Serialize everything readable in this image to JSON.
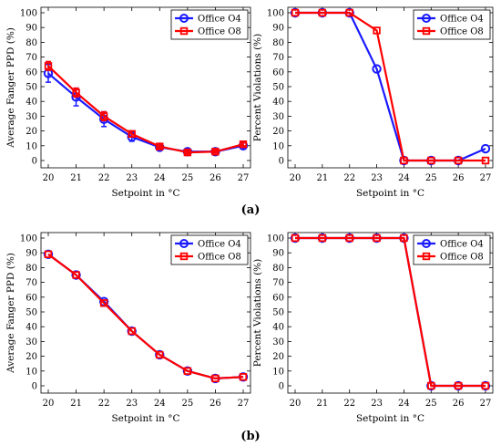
{
  "figure": {
    "caption_a": "(a)",
    "caption_b": "(b)"
  },
  "colors": {
    "series_blue": "#1a1aff",
    "series_red": "#ff0000",
    "axis": "#000000"
  },
  "chart_data": [
    {
      "id": "a-left",
      "type": "line",
      "panel": "a",
      "xlabel": "Setpoint in  °C",
      "ylabel": "Average Fanger PPD (%)",
      "x": [
        20,
        21,
        22,
        23,
        24,
        25,
        26,
        27
      ],
      "xlim": [
        20,
        27
      ],
      "ylim": [
        0,
        100
      ],
      "xticks": [
        "20",
        "21",
        "22",
        "23",
        "24",
        "25",
        "26",
        "27"
      ],
      "yticks": [
        "0",
        "10",
        "20",
        "30",
        "40",
        "50",
        "60",
        "70",
        "80",
        "90",
        "100"
      ],
      "legend_position": "top-right",
      "series": [
        {
          "name": "Office O4",
          "marker": "circle",
          "color": "#1a1aff",
          "values": [
            59,
            43,
            28,
            16,
            9,
            6,
            6,
            10
          ],
          "error": [
            6,
            6,
            5,
            3,
            1,
            1,
            1,
            2
          ]
        },
        {
          "name": "Office O8",
          "marker": "square",
          "color": "#ff0000",
          "values": [
            64,
            46,
            30,
            18,
            9.5,
            5.5,
            6,
            11
          ],
          "error": [
            3,
            3,
            3,
            2,
            1,
            1,
            1,
            1
          ]
        }
      ]
    },
    {
      "id": "a-right",
      "type": "line",
      "panel": "a",
      "xlabel": "Setpoint in  °C",
      "ylabel": "Percent Violations (%)",
      "x": [
        20,
        21,
        22,
        23,
        24,
        25,
        26,
        27
      ],
      "xlim": [
        20,
        27
      ],
      "ylim": [
        0,
        100
      ],
      "xticks": [
        "20",
        "21",
        "22",
        "23",
        "24",
        "25",
        "26",
        "27"
      ],
      "yticks": [
        "0",
        "10",
        "20",
        "30",
        "40",
        "50",
        "60",
        "70",
        "80",
        "90",
        "100"
      ],
      "legend_position": "top-right",
      "series": [
        {
          "name": "Office O4",
          "marker": "circle",
          "color": "#1a1aff",
          "values": [
            100,
            100,
            100,
            62,
            0,
            0,
            0,
            8
          ]
        },
        {
          "name": "Office O8",
          "marker": "square",
          "color": "#ff0000",
          "values": [
            100,
            100,
            100,
            88,
            0,
            0,
            0,
            0
          ]
        }
      ]
    },
    {
      "id": "b-left",
      "type": "line",
      "panel": "b",
      "xlabel": "Setpoint in  °C",
      "ylabel": "Average Fanger PPD (%)",
      "x": [
        20,
        21,
        22,
        23,
        24,
        25,
        26,
        27
      ],
      "xlim": [
        20,
        27
      ],
      "ylim": [
        0,
        100
      ],
      "xticks": [
        "20",
        "21",
        "22",
        "23",
        "24",
        "25",
        "26",
        "27"
      ],
      "yticks": [
        "0",
        "10",
        "20",
        "30",
        "40",
        "50",
        "60",
        "70",
        "80",
        "90",
        "100"
      ],
      "legend_position": "top-right",
      "series": [
        {
          "name": "Office O4",
          "marker": "circle",
          "color": "#1a1aff",
          "values": [
            89,
            75,
            57,
            37,
            21,
            10,
            5,
            6
          ]
        },
        {
          "name": "Office O8",
          "marker": "square",
          "color": "#ff0000",
          "values": [
            89,
            75,
            56,
            37,
            21,
            10,
            5,
            6
          ]
        }
      ]
    },
    {
      "id": "b-right",
      "type": "line",
      "panel": "b",
      "xlabel": "Setpoint in  °C",
      "ylabel": "Percent Violations (%)",
      "x": [
        20,
        21,
        22,
        23,
        24,
        25,
        26,
        27
      ],
      "xlim": [
        20,
        27
      ],
      "ylim": [
        0,
        100
      ],
      "xticks": [
        "20",
        "21",
        "22",
        "23",
        "24",
        "25",
        "26",
        "27"
      ],
      "yticks": [
        "0",
        "10",
        "20",
        "30",
        "40",
        "50",
        "60",
        "70",
        "80",
        "90",
        "100"
      ],
      "legend_position": "top-right",
      "series": [
        {
          "name": "Office O4",
          "marker": "circle",
          "color": "#1a1aff",
          "values": [
            100,
            100,
            100,
            100,
            100,
            0,
            0,
            0
          ]
        },
        {
          "name": "Office O8",
          "marker": "square",
          "color": "#ff0000",
          "values": [
            100,
            100,
            100,
            100,
            100,
            0,
            0,
            0
          ]
        }
      ]
    }
  ]
}
